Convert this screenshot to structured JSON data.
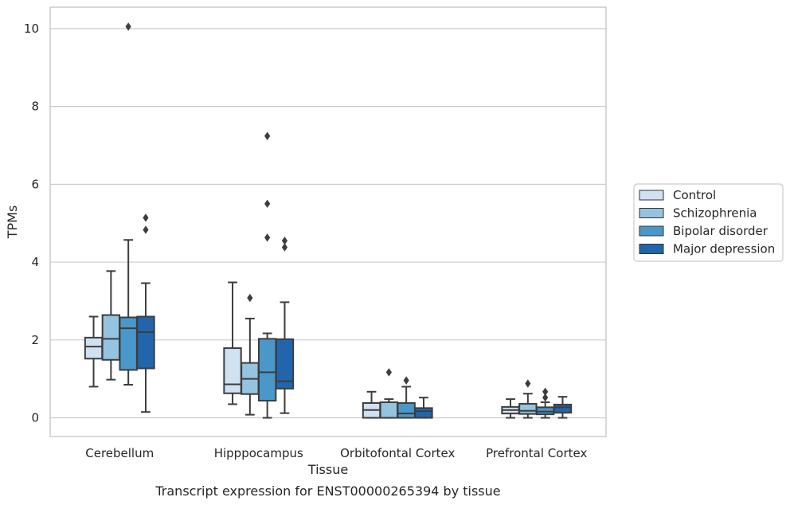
{
  "chart_data": {
    "type": "box",
    "caption": "Transcript expression for ENST00000265394 by tissue",
    "xlabel": "Tissue",
    "ylabel": "TPMs",
    "ylim": [
      -0.48,
      10.55
    ],
    "yticks": [
      0,
      2,
      4,
      6,
      8,
      10
    ],
    "grid": true,
    "legend_position": "right",
    "categories": [
      "Cerebellum",
      "Hipppocampus",
      "Orbitofontal Cortex",
      "Prefrontal Cortex"
    ],
    "series": [
      {
        "name": "Control",
        "color": "#d0e1f2",
        "boxes": [
          {
            "whislo": 0.8,
            "q1": 1.52,
            "med": 1.83,
            "q3": 2.06,
            "whishi": 2.6,
            "fliers": []
          },
          {
            "whislo": 0.35,
            "q1": 0.63,
            "med": 0.86,
            "q3": 1.79,
            "whishi": 3.48,
            "fliers": []
          },
          {
            "whislo": 0.0,
            "q1": 0.0,
            "med": 0.2,
            "q3": 0.38,
            "whishi": 0.67,
            "fliers": []
          },
          {
            "whislo": 0.0,
            "q1": 0.11,
            "med": 0.2,
            "q3": 0.28,
            "whishi": 0.48,
            "fliers": []
          }
        ]
      },
      {
        "name": "Schizophrenia",
        "color": "#94c4df",
        "boxes": [
          {
            "whislo": 0.98,
            "q1": 1.49,
            "med": 2.03,
            "q3": 2.64,
            "whishi": 3.77,
            "fliers": []
          },
          {
            "whislo": 0.08,
            "q1": 0.61,
            "med": 1.0,
            "q3": 1.41,
            "whishi": 2.55,
            "fliers": [
              3.08
            ]
          },
          {
            "whislo": 0.0,
            "q1": 0.0,
            "med": 0.0,
            "q3": 0.4,
            "whishi": 0.48,
            "fliers": [
              1.17
            ]
          },
          {
            "whislo": 0.0,
            "q1": 0.1,
            "med": 0.18,
            "q3": 0.36,
            "whishi": 0.62,
            "fliers": [
              0.88
            ]
          }
        ]
      },
      {
        "name": "Bipolar disorder",
        "color": "#4a98c9",
        "boxes": [
          {
            "whislo": 0.85,
            "q1": 1.23,
            "med": 2.3,
            "q3": 2.58,
            "whishi": 4.57,
            "fliers": [
              10.05
            ]
          },
          {
            "whislo": 0.0,
            "q1": 0.44,
            "med": 1.17,
            "q3": 2.03,
            "whishi": 2.17,
            "fliers": [
              4.63,
              5.5,
              7.24
            ]
          },
          {
            "whislo": 0.0,
            "q1": 0.0,
            "med": 0.11,
            "q3": 0.38,
            "whishi": 0.8,
            "fliers": [
              0.96
            ]
          },
          {
            "whislo": 0.0,
            "q1": 0.09,
            "med": 0.16,
            "q3": 0.27,
            "whishi": 0.4,
            "fliers": [
              0.52,
              0.67
            ]
          }
        ]
      },
      {
        "name": "Major depression",
        "color": "#2166ac",
        "boxes": [
          {
            "whislo": 0.15,
            "q1": 1.27,
            "med": 2.2,
            "q3": 2.6,
            "whishi": 3.46,
            "fliers": [
              4.83,
              5.14
            ]
          },
          {
            "whislo": 0.12,
            "q1": 0.75,
            "med": 0.94,
            "q3": 2.02,
            "whishi": 2.97,
            "fliers": [
              4.38,
              4.55
            ]
          },
          {
            "whislo": 0.0,
            "q1": 0.0,
            "med": 0.17,
            "q3": 0.25,
            "whishi": 0.52,
            "fliers": []
          },
          {
            "whislo": 0.0,
            "q1": 0.13,
            "med": 0.27,
            "q3": 0.34,
            "whishi": 0.54,
            "fliers": []
          }
        ]
      }
    ]
  }
}
